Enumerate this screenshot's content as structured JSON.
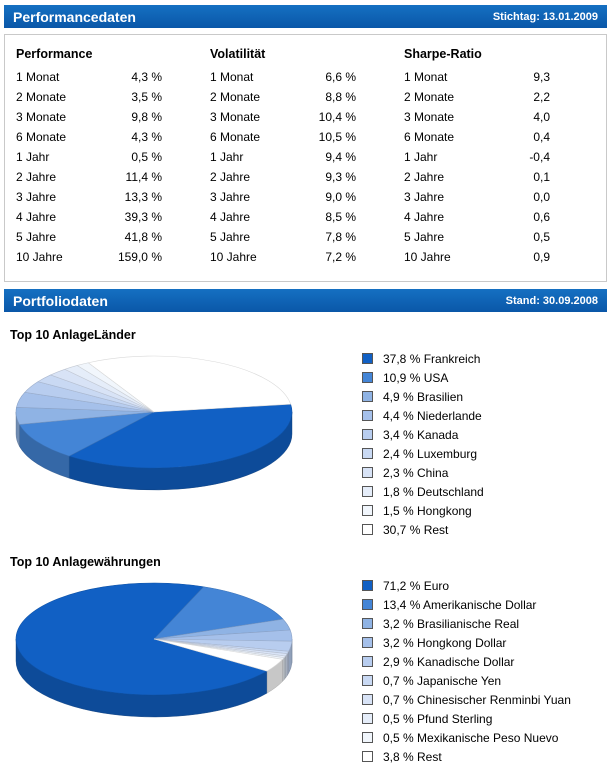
{
  "performance_section": {
    "title": "Performancedaten",
    "date_label": "Stichtag: 13.01.2009"
  },
  "portfolio_section": {
    "title": "Portfoliodaten",
    "date_label": "Stand: 30.09.2008"
  },
  "performance_table": {
    "columns": [
      {
        "header": "Performance",
        "rows": [
          [
            "1 Monat",
            "4,3 %"
          ],
          [
            "2 Monate",
            "3,5 %"
          ],
          [
            "3 Monate",
            "9,8 %"
          ],
          [
            "6 Monate",
            "4,3 %"
          ],
          [
            "1 Jahr",
            "0,5 %"
          ],
          [
            "2 Jahre",
            "11,4 %"
          ],
          [
            "3 Jahre",
            "13,3 %"
          ],
          [
            "4 Jahre",
            "39,3 %"
          ],
          [
            "5 Jahre",
            "41,8 %"
          ],
          [
            "10 Jahre",
            "159,0 %"
          ]
        ]
      },
      {
        "header": "Volatilität",
        "rows": [
          [
            "1 Monat",
            "6,6 %"
          ],
          [
            "2 Monate",
            "8,8 %"
          ],
          [
            "3 Monate",
            "10,4 %"
          ],
          [
            "6 Monate",
            "10,5 %"
          ],
          [
            "1 Jahr",
            "9,4 %"
          ],
          [
            "2 Jahre",
            "9,3 %"
          ],
          [
            "3 Jahre",
            "9,0 %"
          ],
          [
            "4 Jahre",
            "8,5 %"
          ],
          [
            "5 Jahre",
            "7,8 %"
          ],
          [
            "10 Jahre",
            "7,2 %"
          ]
        ]
      },
      {
        "header": "Sharpe-Ratio",
        "rows": [
          [
            "1 Monat",
            "9,3"
          ],
          [
            "2 Monate",
            "2,2"
          ],
          [
            "3 Monate",
            "4,0"
          ],
          [
            "6 Monate",
            "0,4"
          ],
          [
            "1 Jahr",
            "-0,4"
          ],
          [
            "2 Jahre",
            "0,1"
          ],
          [
            "3 Jahre",
            "0,0"
          ],
          [
            "4 Jahre",
            "0,6"
          ],
          [
            "5 Jahre",
            "0,5"
          ],
          [
            "10 Jahre",
            "0,9"
          ]
        ]
      }
    ]
  },
  "chart_data": [
    {
      "type": "pie",
      "style": "3d",
      "title": "Top 10 AnlageLänder",
      "unit": "%",
      "labels": [
        "Frankreich",
        "USA",
        "Brasilien",
        "Niederlande",
        "Kanada",
        "Luxemburg",
        "China",
        "Deutschland",
        "Hongkong",
        "Rest"
      ],
      "values": [
        37.8,
        10.9,
        4.9,
        4.4,
        3.4,
        2.4,
        2.3,
        1.8,
        1.5,
        30.7
      ],
      "legend_labels": [
        "37,8 % Frankreich",
        "10,9 % USA",
        "4,9 % Brasilien",
        "4,4 % Niederlande",
        "3,4 % Kanada",
        "2,4 % Luxemburg",
        "2,3 % China",
        "1,8 % Deutschland",
        "1,5 % Hongkong",
        "30,7 % Rest"
      ],
      "colors": [
        "#1160c4",
        "#4485d6",
        "#8fb3e4",
        "#a5c0ea",
        "#b8cdef",
        "#c9d9f3",
        "#d8e3f6",
        "#e5edf9",
        "#f1f6fc",
        "#ffffff"
      ],
      "start_angle_deg": -8,
      "legend_position": "right"
    },
    {
      "type": "pie",
      "style": "3d",
      "title": "Top 10 Anlagewährungen",
      "unit": "%",
      "labels": [
        "Euro",
        "Amerikanische Dollar",
        "Brasilianische Real",
        "Hongkong Dollar",
        "Kanadische Dollar",
        "Japanische Yen",
        "Chinesischer Renminbi Yuan",
        "Pfund Sterling",
        "Mexikanische Peso Nuevo",
        "Rest"
      ],
      "values": [
        71.2,
        13.4,
        3.2,
        3.2,
        2.9,
        0.7,
        0.7,
        0.5,
        0.5,
        3.8
      ],
      "legend_labels": [
        "71,2 % Euro",
        "13,4 % Amerikanische Dollar",
        "3,2 % Brasilianische Real",
        "3,2 % Hongkong Dollar",
        "2,9 % Kanadische Dollar",
        "0,7 % Japanische Yen",
        "0,7 % Chinesischer Renminbi Yuan",
        "0,5 % Pfund Sterling",
        "0,5 % Mexikanische Peso Nuevo",
        "3,8 % Rest"
      ],
      "colors": [
        "#1160c4",
        "#4485d6",
        "#8fb3e4",
        "#a5c0ea",
        "#b8cdef",
        "#c9d9f3",
        "#d8e3f6",
        "#e5edf9",
        "#f1f6fc",
        "#ffffff"
      ],
      "start_angle_deg": 35,
      "legend_position": "right"
    }
  ],
  "theme": {
    "header_bar_blue": "#0d5fb2",
    "pie_primary_blue": "#1160c4",
    "table_border": "#c9c9c9"
  }
}
